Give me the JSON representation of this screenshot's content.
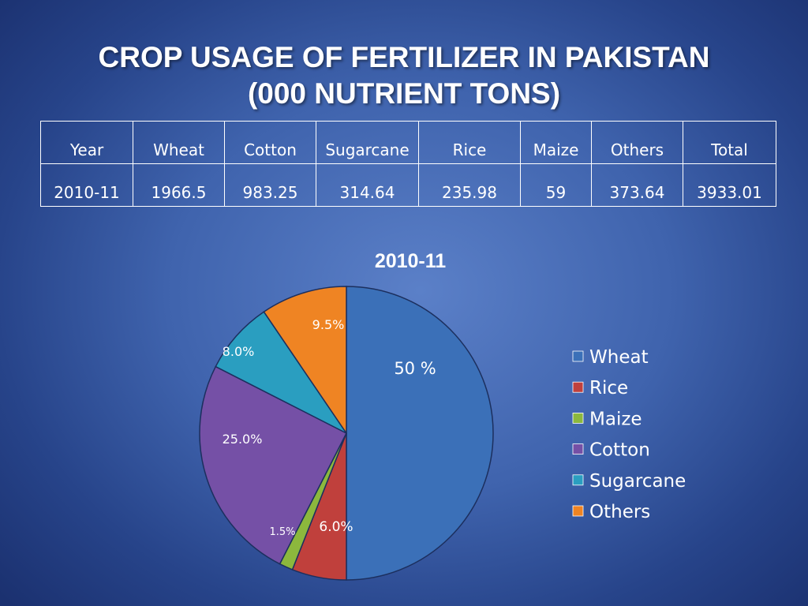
{
  "slide": {
    "title_line1": "CROP USAGE OF FERTILIZER IN PAKISTAN",
    "title_line2": "(000 NUTRIENT TONS)"
  },
  "table": {
    "headers": [
      "Year",
      "Wheat",
      "Cotton",
      "Sugarcane",
      "Rice",
      "Maize",
      "Others",
      "Total"
    ],
    "rows": [
      [
        "2010-11",
        "1966.5",
        "983.25",
        "314.64",
        "235.98",
        "59",
        "373.64",
        "3933.01"
      ]
    ]
  },
  "chart_data": {
    "type": "pie",
    "title": "2010-11",
    "legend_position": "right",
    "slices": [
      {
        "name": "Wheat",
        "value": 50.0,
        "label": "50 %",
        "color": "#3b70b8"
      },
      {
        "name": "Rice",
        "value": 6.0,
        "label": "6.0%",
        "color": "#c0403c"
      },
      {
        "name": "Maize",
        "value": 1.5,
        "label": "1.5%",
        "color": "#8cb83d"
      },
      {
        "name": "Cotton",
        "value": 25.0,
        "label": "25.0%",
        "color": "#7550a6"
      },
      {
        "name": "Sugarcane",
        "value": 8.0,
        "label": "8.0%",
        "color": "#2a9ec0"
      },
      {
        "name": "Others",
        "value": 9.5,
        "label": "9.5%",
        "color": "#ef8423"
      }
    ]
  }
}
